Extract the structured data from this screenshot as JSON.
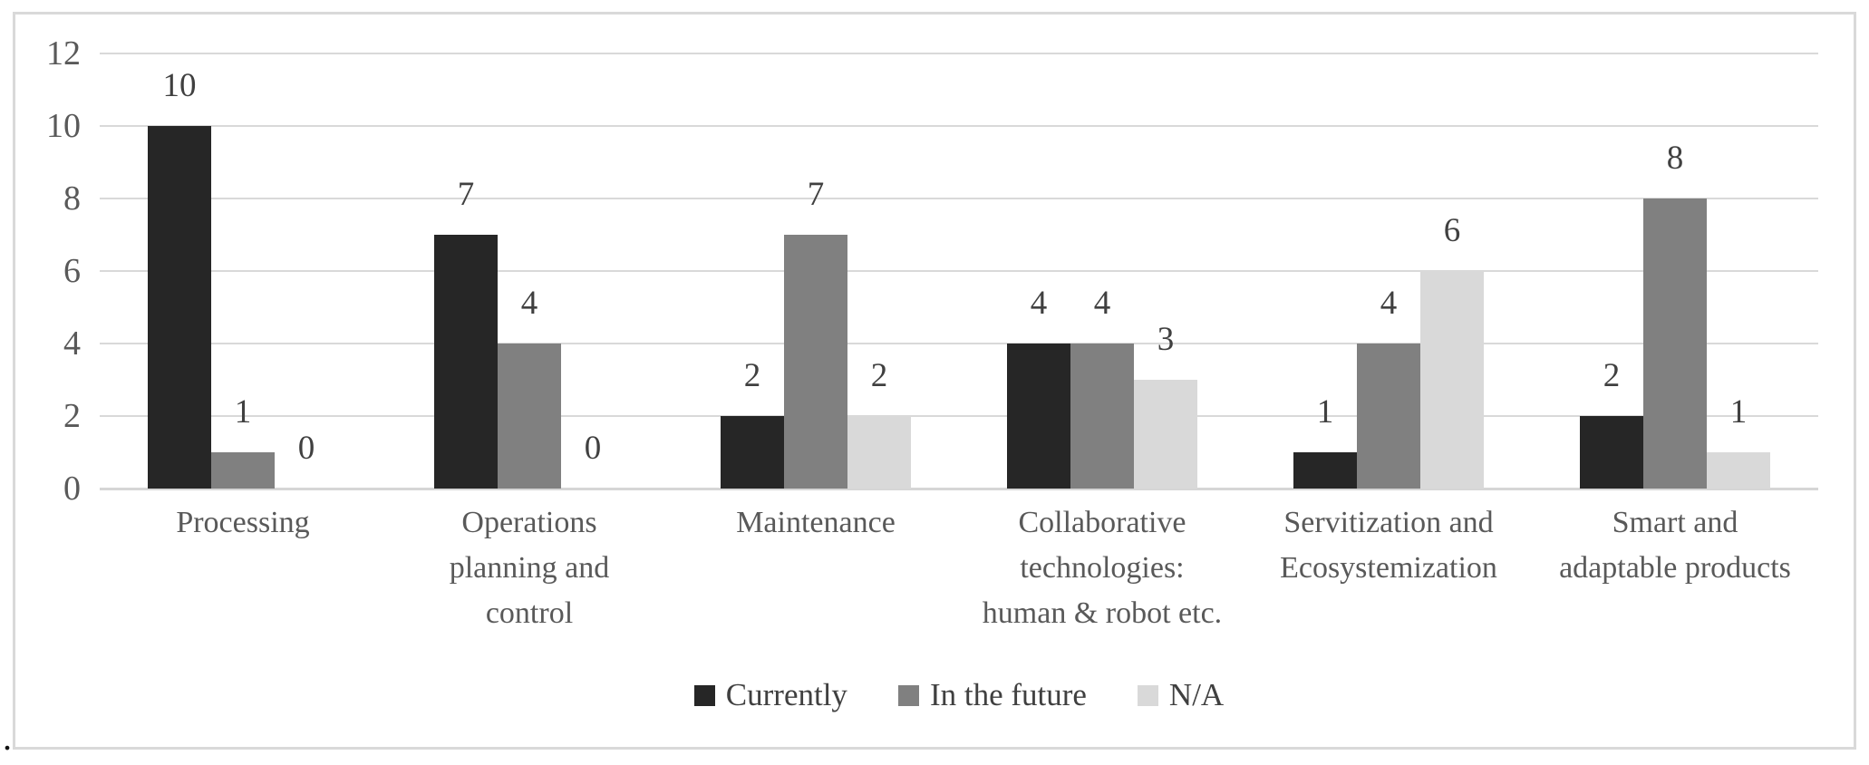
{
  "caption_period": ".",
  "chart_data": {
    "type": "bar",
    "title": "",
    "xlabel": "",
    "ylabel": "",
    "categories": [
      "Processing",
      "Operations planning and control",
      "Maintenance",
      "Collaborative technologies: human & robot etc.",
      "Servitization and Ecosystemization",
      "Smart and adaptable products"
    ],
    "category_lines": [
      [
        "Processing"
      ],
      [
        "Operations",
        "planning and",
        "control"
      ],
      [
        "Maintenance"
      ],
      [
        "Collaborative",
        "technologies:",
        "human & robot etc."
      ],
      [
        "Servitization and",
        "Ecosystemization"
      ],
      [
        "Smart and",
        "adaptable products"
      ]
    ],
    "series": [
      {
        "name": "Currently",
        "color": "#262626",
        "values": [
          10,
          7,
          2,
          4,
          1,
          2
        ]
      },
      {
        "name": "In the future",
        "color": "#808080",
        "values": [
          1,
          4,
          7,
          4,
          4,
          8
        ]
      },
      {
        "name": "N/A",
        "color": "#d9d9d9",
        "values": [
          0,
          0,
          2,
          3,
          6,
          1
        ]
      }
    ],
    "ylim": [
      0,
      12
    ],
    "yticks": [
      0,
      2,
      4,
      6,
      8,
      10,
      12
    ],
    "grid": true,
    "legend_position": "bottom",
    "colors": {
      "background": "#ffffff",
      "border": "#d9d9d9",
      "gridline": "#d9d9d9",
      "axis_line": "#d6d6d6",
      "tick_text": "#595959",
      "data_label_text": "#404040",
      "category_text": "#595959",
      "legend_text": "#404040"
    }
  }
}
